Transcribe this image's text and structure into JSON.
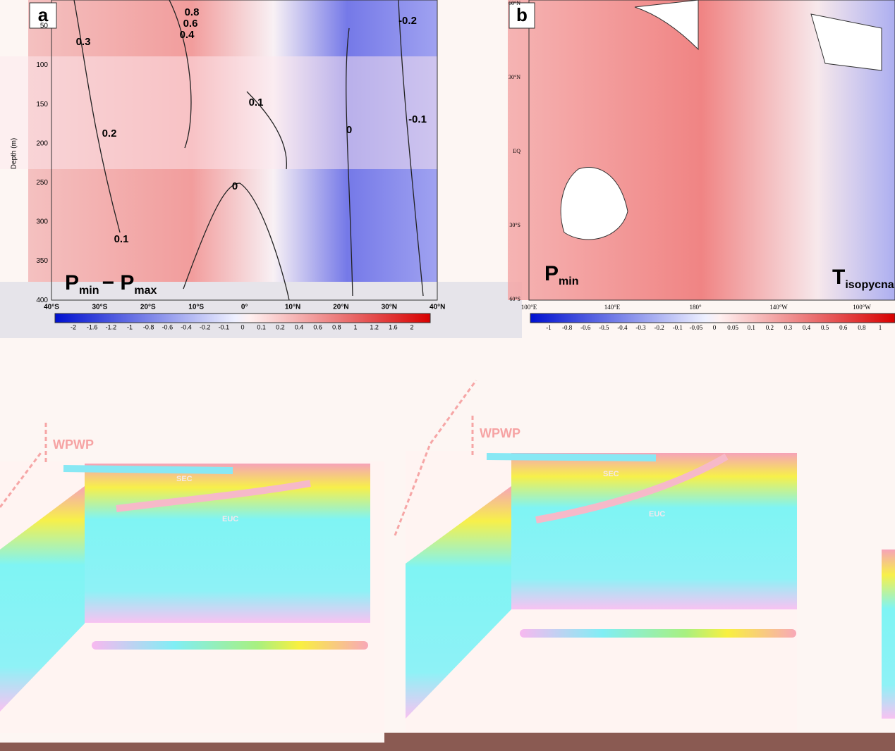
{
  "panel_a": {
    "label": "a",
    "y_axis_label": "Depth (m)",
    "y_ticks": [
      "50",
      "100",
      "150",
      "200",
      "250",
      "300",
      "350",
      "400"
    ],
    "x_ticks": [
      "40°S",
      "30°S",
      "20°S",
      "10°S",
      "0°",
      "10°N",
      "20°N",
      "30°N",
      "40°N"
    ],
    "contour_labels": [
      "0.8",
      "0.6",
      "0.4",
      "0.3",
      "0.1",
      "0.2",
      "0.1",
      "0",
      "0",
      "-0.2",
      "-0.1"
    ],
    "title": {
      "main1": "P",
      "sub1": "min",
      "main2": "− P",
      "sub2": "max"
    },
    "colorbar_labels": [
      "-2",
      "-1.6",
      "-1.2",
      "-1",
      "-0.8",
      "-0.6",
      "-0.4",
      "-0.2",
      "-0.1",
      "0",
      "0.1",
      "0.2",
      "0.4",
      "0.6",
      "0.8",
      "1",
      "1.2",
      "1.6",
      "2"
    ]
  },
  "panel_b": {
    "label": "b",
    "lat_ticks": [
      "60°N",
      "30°N",
      "EQ",
      "30°S",
      "60°S"
    ],
    "lon_ticks": [
      "100°E",
      "140°E",
      "180°",
      "140°W",
      "100°W"
    ],
    "title_left": {
      "main": "P",
      "sub": "min"
    },
    "title_right": {
      "main": "T",
      "sub": "isopycna"
    },
    "colorbar_labels": [
      "-1",
      "-0.8",
      "-0.6",
      "-0.5",
      "-0.4",
      "-0.3",
      "-0.2",
      "-0.1",
      "-0.05",
      "0",
      "0.05",
      "0.1",
      "0.2",
      "0.3",
      "0.4",
      "0.5",
      "0.6",
      "0.8",
      "1"
    ]
  },
  "schematic_left": {
    "labels": [
      "WPWP",
      "SEC",
      "EUC"
    ]
  },
  "schematic_right": {
    "labels": [
      "WPWP",
      "SEC",
      "EUC"
    ]
  }
}
